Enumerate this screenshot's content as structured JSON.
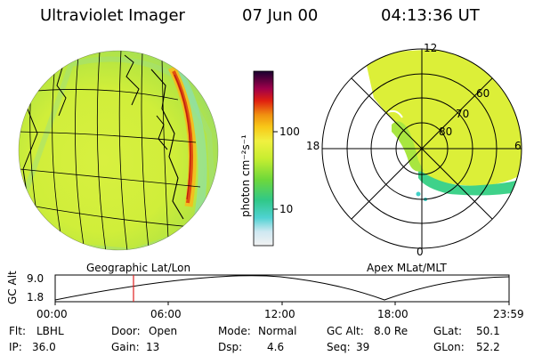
{
  "header": {
    "instrument": "Ultraviolet Imager",
    "date": "07 Jun 00",
    "time": "04:13:36 UT"
  },
  "colorbar": {
    "unit_label": "photon cm⁻²s⁻¹",
    "ticks": [
      "100",
      "10"
    ]
  },
  "polar": {
    "mlt_labels": [
      "12",
      "18",
      "6",
      "0"
    ],
    "lat_labels": [
      "60",
      "70",
      "80"
    ]
  },
  "projection_labels": {
    "left": "Geographic Lat/Lon",
    "right": "Apex MLat/MLT"
  },
  "altitude_plot": {
    "y_label": "GC Alt",
    "y_ticks": [
      "9.0",
      "1.8"
    ],
    "x_ticks": [
      "00:00",
      "06:00",
      "12:00",
      "18:00",
      "23:59"
    ],
    "marker_color": "#e02020"
  },
  "info": {
    "row1": [
      {
        "label": "Flt:",
        "value": "LBHL"
      },
      {
        "label": "Door:",
        "value": "Open"
      },
      {
        "label": "Mode:",
        "value": "Normal"
      },
      {
        "label": "GC Alt:",
        "value": "8.0 Re"
      },
      {
        "label": "GLat:",
        "value": "50.1"
      }
    ],
    "row2": [
      {
        "label": "IP:",
        "value": "36.0"
      },
      {
        "label": "Gain:",
        "value": "13"
      },
      {
        "label": "Dsp:",
        "value": "4.6"
      },
      {
        "label": "Seq:",
        "value": "39"
      },
      {
        "label": "GLon:",
        "value": "52.2"
      }
    ]
  }
}
